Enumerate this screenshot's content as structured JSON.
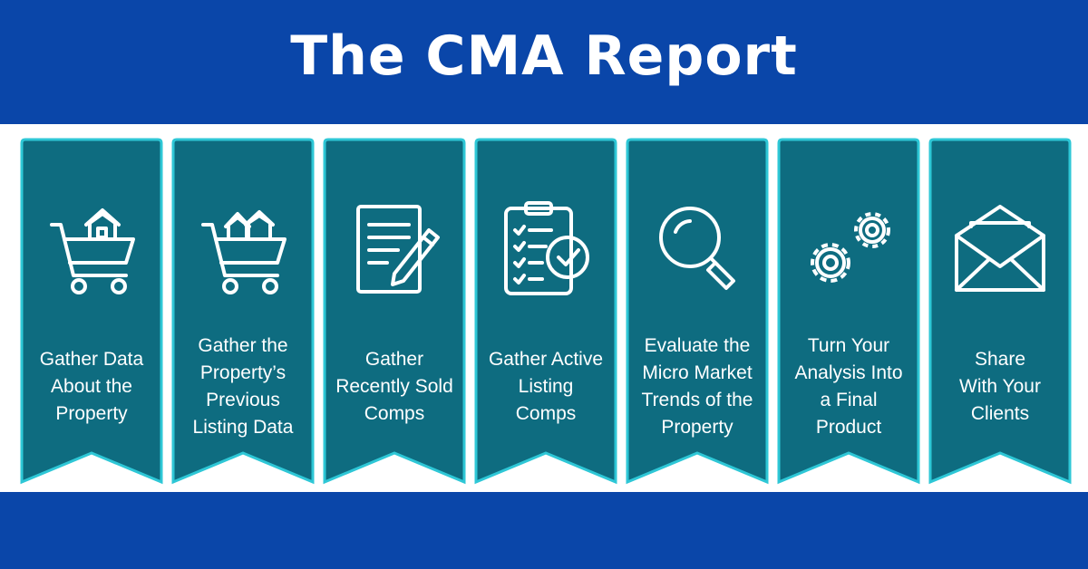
{
  "title": "The CMA Report",
  "colors": {
    "brand_blue": "#0a46a9",
    "teal": "#0e6c80",
    "teal_edge": "#2ec7d6",
    "white": "#ffffff"
  },
  "steps": [
    {
      "label": "Gather  Data\nAbout the\nProperty",
      "icon": "shopping-cart-house-icon"
    },
    {
      "label": "Gather the\nProperty’s\nPrevious\nListing Data",
      "icon": "shopping-cart-houses-icon"
    },
    {
      "label": "Gather\nRecently Sold\nComps",
      "icon": "document-pencil-icon"
    },
    {
      "label": "Gather Active\nListing\nComps",
      "icon": "clipboard-checklist-icon"
    },
    {
      "label": "Evaluate the\nMicro Market\nTrends of the\nProperty",
      "icon": "magnifier-icon"
    },
    {
      "label": "Turn Your\nAnalysis Into\na Final\nProduct",
      "icon": "gears-icon"
    },
    {
      "label": "Share\nWith Your\nClients",
      "icon": "envelope-icon"
    }
  ]
}
